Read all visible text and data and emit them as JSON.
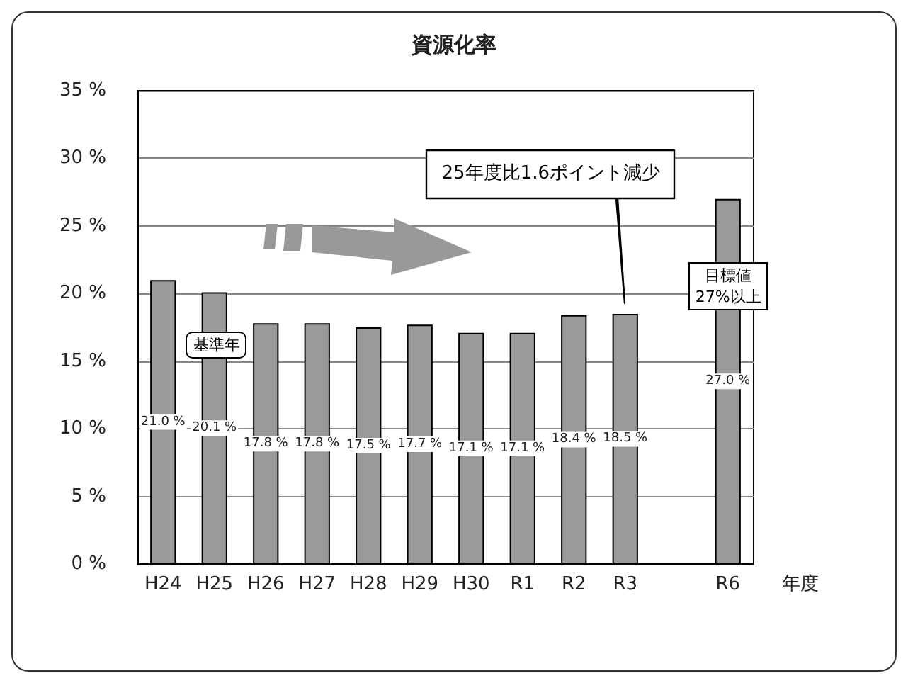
{
  "chart_data": {
    "type": "bar",
    "title": "資源化率",
    "xlabel": "年度",
    "categories": [
      "H24",
      "H25",
      "H26",
      "H27",
      "H28",
      "H29",
      "H30",
      "R1",
      "R2",
      "R3",
      null,
      "R6"
    ],
    "values": [
      21.0,
      20.1,
      17.8,
      17.8,
      17.5,
      17.7,
      17.1,
      17.1,
      18.4,
      18.5,
      null,
      27.0
    ],
    "value_labels": [
      "21.0 %",
      "20.1 %",
      "17.8 %",
      "17.8 %",
      "17.5 %",
      "17.7 %",
      "17.1 %",
      "17.1 %",
      "18.4 %",
      "18.5 %",
      null,
      "27.0 %"
    ],
    "color": "#9a9a9a",
    "ylim": [
      0,
      35
    ],
    "yticks": [
      {
        "value": 0,
        "label": "0 %"
      },
      {
        "value": 5,
        "label": "5 %"
      },
      {
        "value": 10,
        "label": "10 %"
      },
      {
        "value": 15,
        "label": "15 %"
      },
      {
        "value": 20,
        "label": "20 %"
      },
      {
        "value": 25,
        "label": "25 %"
      },
      {
        "value": 30,
        "label": "30 %"
      },
      {
        "value": 35,
        "label": "35 %"
      }
    ],
    "grid": "y",
    "annotations": [
      "25年度比1.6ポイント減少",
      "基準年",
      "目標値\n27%以上"
    ]
  }
}
